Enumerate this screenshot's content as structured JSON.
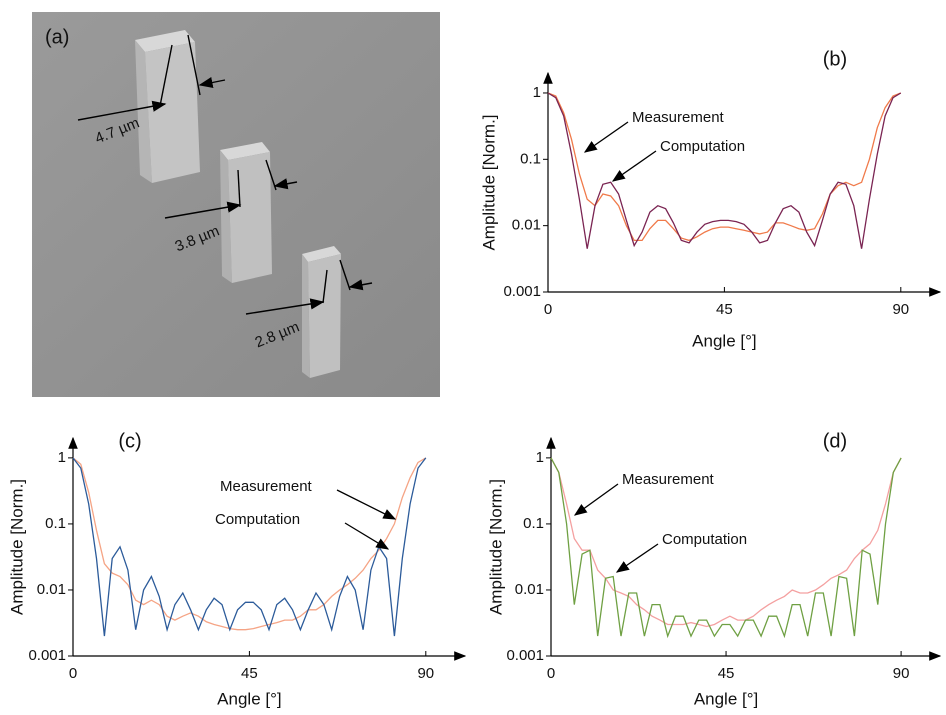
{
  "figure": {
    "panel_label": "(a)",
    "annotations": [
      "4.7 µm",
      "3.8 µm",
      "2.8 µm"
    ]
  },
  "chart_data": [
    {
      "type": "line",
      "panel_label": "(b)",
      "xlabel": "Angle [°]",
      "ylabel": "Amplitude [Norm.]",
      "yscale": "log",
      "xlim": [
        0,
        100
      ],
      "ylim": [
        0.001,
        2
      ],
      "xticks": [
        0,
        45,
        90
      ],
      "yticks": [
        0.001,
        0.01,
        0.1,
        1
      ],
      "x": [
        0,
        2,
        4,
        6,
        8,
        10,
        12,
        14,
        16,
        18,
        20,
        22,
        24,
        26,
        28,
        30,
        32,
        34,
        36,
        38,
        40,
        42,
        44,
        46,
        48,
        50,
        52,
        54,
        56,
        58,
        60,
        62,
        64,
        66,
        68,
        70,
        72,
        74,
        76,
        78,
        80,
        82,
        84,
        86,
        88,
        90
      ],
      "series": [
        {
          "name": "Measurement",
          "color": "#f07a4a",
          "values": [
            1,
            0.9,
            0.5,
            0.2,
            0.06,
            0.025,
            0.02,
            0.03,
            0.028,
            0.02,
            0.01,
            0.006,
            0.006,
            0.009,
            0.012,
            0.012,
            0.009,
            0.0065,
            0.006,
            0.0068,
            0.008,
            0.009,
            0.0095,
            0.0095,
            0.009,
            0.0085,
            0.008,
            0.0075,
            0.008,
            0.011,
            0.011,
            0.01,
            0.009,
            0.0085,
            0.009,
            0.015,
            0.03,
            0.04,
            0.045,
            0.04,
            0.045,
            0.1,
            0.3,
            0.6,
            0.9,
            1
          ]
        },
        {
          "name": "Computation",
          "color": "#7a2452",
          "values": [
            1,
            0.85,
            0.45,
            0.12,
            0.025,
            0.0045,
            0.02,
            0.042,
            0.045,
            0.03,
            0.012,
            0.005,
            0.008,
            0.016,
            0.02,
            0.018,
            0.011,
            0.006,
            0.0055,
            0.008,
            0.0105,
            0.0115,
            0.012,
            0.012,
            0.0115,
            0.0105,
            0.008,
            0.0055,
            0.006,
            0.011,
            0.018,
            0.02,
            0.016,
            0.008,
            0.005,
            0.012,
            0.03,
            0.045,
            0.042,
            0.02,
            0.0045,
            0.025,
            0.12,
            0.45,
            0.85,
            1
          ]
        }
      ]
    },
    {
      "type": "line",
      "panel_label": "(c)",
      "xlabel": "Angle [°]",
      "ylabel": "Amplitude [Norm.]",
      "yscale": "log",
      "xlim": [
        0,
        100
      ],
      "ylim": [
        0.001,
        2
      ],
      "xticks": [
        0,
        45,
        90
      ],
      "yticks": [
        0.001,
        0.01,
        0.1,
        1
      ],
      "x": [
        0,
        2,
        4,
        6,
        8,
        10,
        12,
        14,
        16,
        18,
        20,
        22,
        24,
        26,
        28,
        30,
        32,
        34,
        36,
        38,
        40,
        42,
        44,
        46,
        48,
        50,
        52,
        54,
        56,
        58,
        60,
        62,
        64,
        66,
        68,
        70,
        72,
        74,
        76,
        78,
        80,
        82,
        84,
        86,
        88,
        90
      ],
      "series": [
        {
          "name": "Measurement",
          "color": "#f5a485",
          "values": [
            1,
            0.8,
            0.3,
            0.08,
            0.025,
            0.018,
            0.016,
            0.012,
            0.007,
            0.006,
            0.007,
            0.006,
            0.004,
            0.0035,
            0.004,
            0.0045,
            0.004,
            0.0033,
            0.003,
            0.0028,
            0.0026,
            0.0025,
            0.0025,
            0.0026,
            0.0028,
            0.003,
            0.0032,
            0.0035,
            0.0035,
            0.004,
            0.005,
            0.005,
            0.006,
            0.008,
            0.01,
            0.012,
            0.015,
            0.02,
            0.03,
            0.04,
            0.06,
            0.1,
            0.25,
            0.5,
            0.85,
            1
          ]
        },
        {
          "name": "Computation",
          "color": "#2c5b9a",
          "values": [
            1,
            0.7,
            0.2,
            0.03,
            0.002,
            0.03,
            0.045,
            0.02,
            0.0025,
            0.01,
            0.016,
            0.008,
            0.0025,
            0.006,
            0.009,
            0.005,
            0.0025,
            0.005,
            0.0075,
            0.006,
            0.0025,
            0.005,
            0.0065,
            0.0065,
            0.005,
            0.0025,
            0.006,
            0.0075,
            0.005,
            0.0025,
            0.005,
            0.009,
            0.006,
            0.0025,
            0.008,
            0.016,
            0.01,
            0.0025,
            0.02,
            0.045,
            0.03,
            0.002,
            0.03,
            0.2,
            0.7,
            1
          ]
        }
      ]
    },
    {
      "type": "line",
      "panel_label": "(d)",
      "xlabel": "Angle [°]",
      "ylabel": "Amplitude [Norm.]",
      "yscale": "log",
      "xlim": [
        0,
        100
      ],
      "ylim": [
        0.001,
        2
      ],
      "xticks": [
        0,
        45,
        90
      ],
      "yticks": [
        0.001,
        0.01,
        0.1,
        1
      ],
      "x": [
        0,
        2,
        4,
        6,
        8,
        10,
        12,
        14,
        16,
        18,
        20,
        22,
        24,
        26,
        28,
        30,
        32,
        34,
        36,
        38,
        40,
        42,
        44,
        46,
        48,
        50,
        52,
        54,
        56,
        58,
        60,
        62,
        64,
        66,
        68,
        70,
        72,
        74,
        76,
        78,
        80,
        82,
        84,
        86,
        88,
        90
      ],
      "series": [
        {
          "name": "Measurement",
          "color": "#f4a0a0",
          "values": [
            1,
            0.6,
            0.2,
            0.06,
            0.04,
            0.04,
            0.02,
            0.015,
            0.01,
            0.009,
            0.008,
            0.006,
            0.005,
            0.004,
            0.0035,
            0.003,
            0.003,
            0.003,
            0.0032,
            0.003,
            0.0028,
            0.003,
            0.0035,
            0.004,
            0.0035,
            0.0035,
            0.004,
            0.005,
            0.006,
            0.007,
            0.008,
            0.01,
            0.009,
            0.009,
            0.01,
            0.012,
            0.015,
            0.017,
            0.02,
            0.03,
            0.04,
            0.05,
            0.08,
            0.2,
            0.6,
            1
          ]
        },
        {
          "name": "Computation",
          "color": "#6fa043",
          "values": [
            1,
            0.6,
            0.1,
            0.006,
            0.035,
            0.04,
            0.002,
            0.015,
            0.016,
            0.002,
            0.009,
            0.009,
            0.002,
            0.006,
            0.006,
            0.002,
            0.004,
            0.004,
            0.002,
            0.0035,
            0.0035,
            0.002,
            0.003,
            0.003,
            0.002,
            0.0035,
            0.0035,
            0.002,
            0.004,
            0.004,
            0.002,
            0.006,
            0.006,
            0.002,
            0.009,
            0.009,
            0.002,
            0.016,
            0.015,
            0.002,
            0.04,
            0.035,
            0.006,
            0.1,
            0.6,
            1
          ]
        }
      ]
    }
  ]
}
